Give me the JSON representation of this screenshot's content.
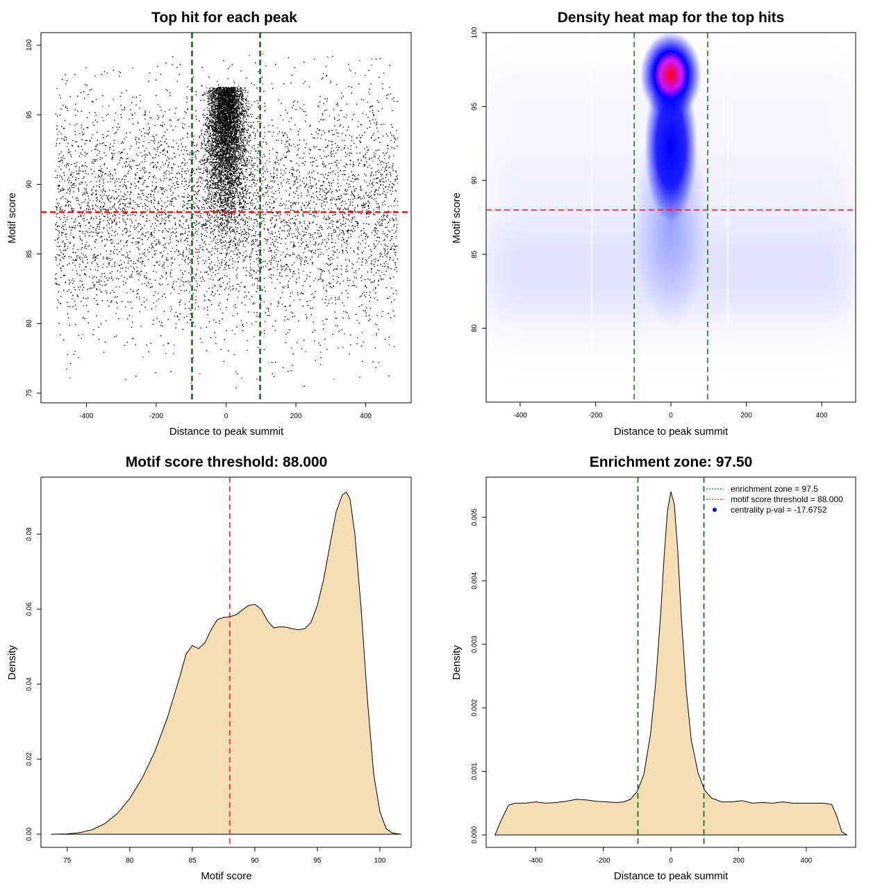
{
  "figure": {
    "background": "#ffffff",
    "fill_color": "#f5deb3",
    "threshold_color": "#ff0000",
    "zone_color": "#006400"
  },
  "chart_data": [
    {
      "id": "scatter",
      "type": "scatter",
      "title": "Top hit for each peak",
      "xlabel": "Distance to peak summit",
      "ylabel": "Motif score",
      "xlim": [
        -530,
        530
      ],
      "ylim": [
        74.3,
        100.9
      ],
      "xticks": [
        -400,
        -200,
        0,
        200,
        400
      ],
      "xtick_labels": [
        "-400",
        "-200",
        "0",
        "200",
        "400"
      ],
      "yticks": [
        75,
        80,
        85,
        90,
        95,
        100
      ],
      "ytick_labels": [
        "75",
        "80",
        "85",
        "90",
        "95",
        "100"
      ],
      "hlines": [
        88
      ],
      "vlines": [
        -97.5,
        97.5
      ],
      "points_note": "Approximately 20000 points: central cluster (x ~ -50..50, y ~ 85..99.7) plus uniform background (x -490..490, y ~ 76..99)"
    },
    {
      "id": "heatmap",
      "type": "heatmap",
      "title": "Density heat map for the top hits",
      "xlabel": "Distance to peak summit",
      "ylabel": "Motif score",
      "xlim": [
        -490,
        490
      ],
      "ylim": [
        75,
        100
      ],
      "xticks": [
        -400,
        -200,
        0,
        200,
        400
      ],
      "xtick_labels": [
        "-400",
        "-200",
        "0",
        "200",
        "400"
      ],
      "yticks": [
        80,
        85,
        90,
        95,
        100
      ],
      "ytick_labels": [
        "80",
        "85",
        "90",
        "95",
        "100"
      ],
      "hlines": [
        88
      ],
      "vlines": [
        -97.5,
        97.5
      ],
      "colorscale": [
        "#ffffff",
        "#0000ff",
        "#ff0000"
      ],
      "peak": {
        "x": 0,
        "y": 97.3
      }
    },
    {
      "id": "score_density",
      "type": "area",
      "title": "Motif score threshold: 88.000",
      "xlabel": "Motif score",
      "ylabel": "Density",
      "xlim": [
        72.9,
        102.5
      ],
      "ylim": [
        -0.0035,
        0.0952
      ],
      "xticks": [
        75,
        80,
        85,
        90,
        95,
        100
      ],
      "xtick_labels": [
        "75",
        "80",
        "85",
        "90",
        "95",
        "100"
      ],
      "yticks": [
        0,
        0.02,
        0.04,
        0.06,
        0.08
      ],
      "ytick_labels": [
        "0.00",
        "0.02",
        "0.04",
        "0.06",
        "0.08"
      ],
      "vlines": [
        88
      ],
      "x": [
        73.7,
        75,
        76,
        77,
        78,
        79,
        80,
        81,
        82,
        83,
        84,
        84.5,
        85,
        85.5,
        86,
        86.5,
        87,
        87.5,
        88,
        88.5,
        89,
        89.5,
        90,
        90.5,
        91,
        91.5,
        92,
        92.5,
        93,
        93.5,
        94,
        94.5,
        95,
        95.5,
        96,
        96.5,
        97,
        97.3,
        97.6,
        98,
        98.5,
        99,
        99.5,
        100,
        100.5,
        101,
        101.7
      ],
      "y": [
        0,
        0.0001,
        0.0004,
        0.0012,
        0.0028,
        0.0055,
        0.0095,
        0.015,
        0.022,
        0.031,
        0.042,
        0.048,
        0.0503,
        0.0495,
        0.051,
        0.0545,
        0.0572,
        0.0578,
        0.058,
        0.0585,
        0.0598,
        0.061,
        0.0613,
        0.06,
        0.057,
        0.055,
        0.0553,
        0.0552,
        0.0548,
        0.0545,
        0.0548,
        0.0565,
        0.061,
        0.068,
        0.077,
        0.086,
        0.0905,
        0.0912,
        0.0895,
        0.08,
        0.06,
        0.036,
        0.016,
        0.006,
        0.0015,
        0.0003,
        0
      ]
    },
    {
      "id": "distance_density",
      "type": "area",
      "title": "Enrichment zone: 97.50",
      "xlabel": "Distance to peak summit",
      "ylabel": "Density",
      "xlim": [
        -546,
        546
      ],
      "ylim": [
        -0.000195,
        0.00563
      ],
      "xticks": [
        -400,
        -200,
        0,
        200,
        400
      ],
      "xtick_labels": [
        "-400",
        "-200",
        "0",
        "200",
        "400"
      ],
      "yticks": [
        0,
        0.001,
        0.002,
        0.003,
        0.004,
        0.005
      ],
      "ytick_labels": [
        "0.000",
        "0.001",
        "0.002",
        "0.003",
        "0.004",
        "0.005"
      ],
      "vlines": [
        -97.5,
        97.5
      ],
      "x": [
        -520,
        -500,
        -480,
        -460,
        -430,
        -400,
        -370,
        -340,
        -310,
        -280,
        -250,
        -220,
        -190,
        -160,
        -140,
        -120,
        -100,
        -80,
        -60,
        -45,
        -30,
        -20,
        -10,
        0,
        10,
        20,
        30,
        45,
        60,
        80,
        100,
        120,
        150,
        180,
        210,
        240,
        270,
        300,
        330,
        360,
        390,
        420,
        450,
        475,
        490,
        505,
        520
      ],
      "y": [
        0,
        0.00025,
        0.00047,
        0.0005,
        0.0005,
        0.00052,
        0.0005,
        0.00051,
        0.00053,
        0.00056,
        0.00055,
        0.00053,
        0.00052,
        0.00051,
        0.00052,
        0.00056,
        0.00068,
        0.00095,
        0.0016,
        0.0024,
        0.0035,
        0.0044,
        0.0051,
        0.0054,
        0.0052,
        0.0045,
        0.0035,
        0.0023,
        0.0015,
        0.00098,
        0.0007,
        0.00058,
        0.00052,
        0.00052,
        0.00054,
        0.0005,
        0.00051,
        0.0005,
        0.00052,
        0.0005,
        0.0005,
        0.0005,
        0.0005,
        0.00048,
        0.0003,
        5e-05,
        0
      ],
      "legend": [
        {
          "label": "enrichment zone = 97.5",
          "kind": "line",
          "color": "#006400"
        },
        {
          "label": "motif score threshold = 88.000",
          "kind": "line",
          "color": "#ff0000"
        },
        {
          "label": "centrality p-val = -17.6752",
          "kind": "point",
          "color": "#0000ff"
        }
      ],
      "legend_position": "top-right"
    }
  ]
}
